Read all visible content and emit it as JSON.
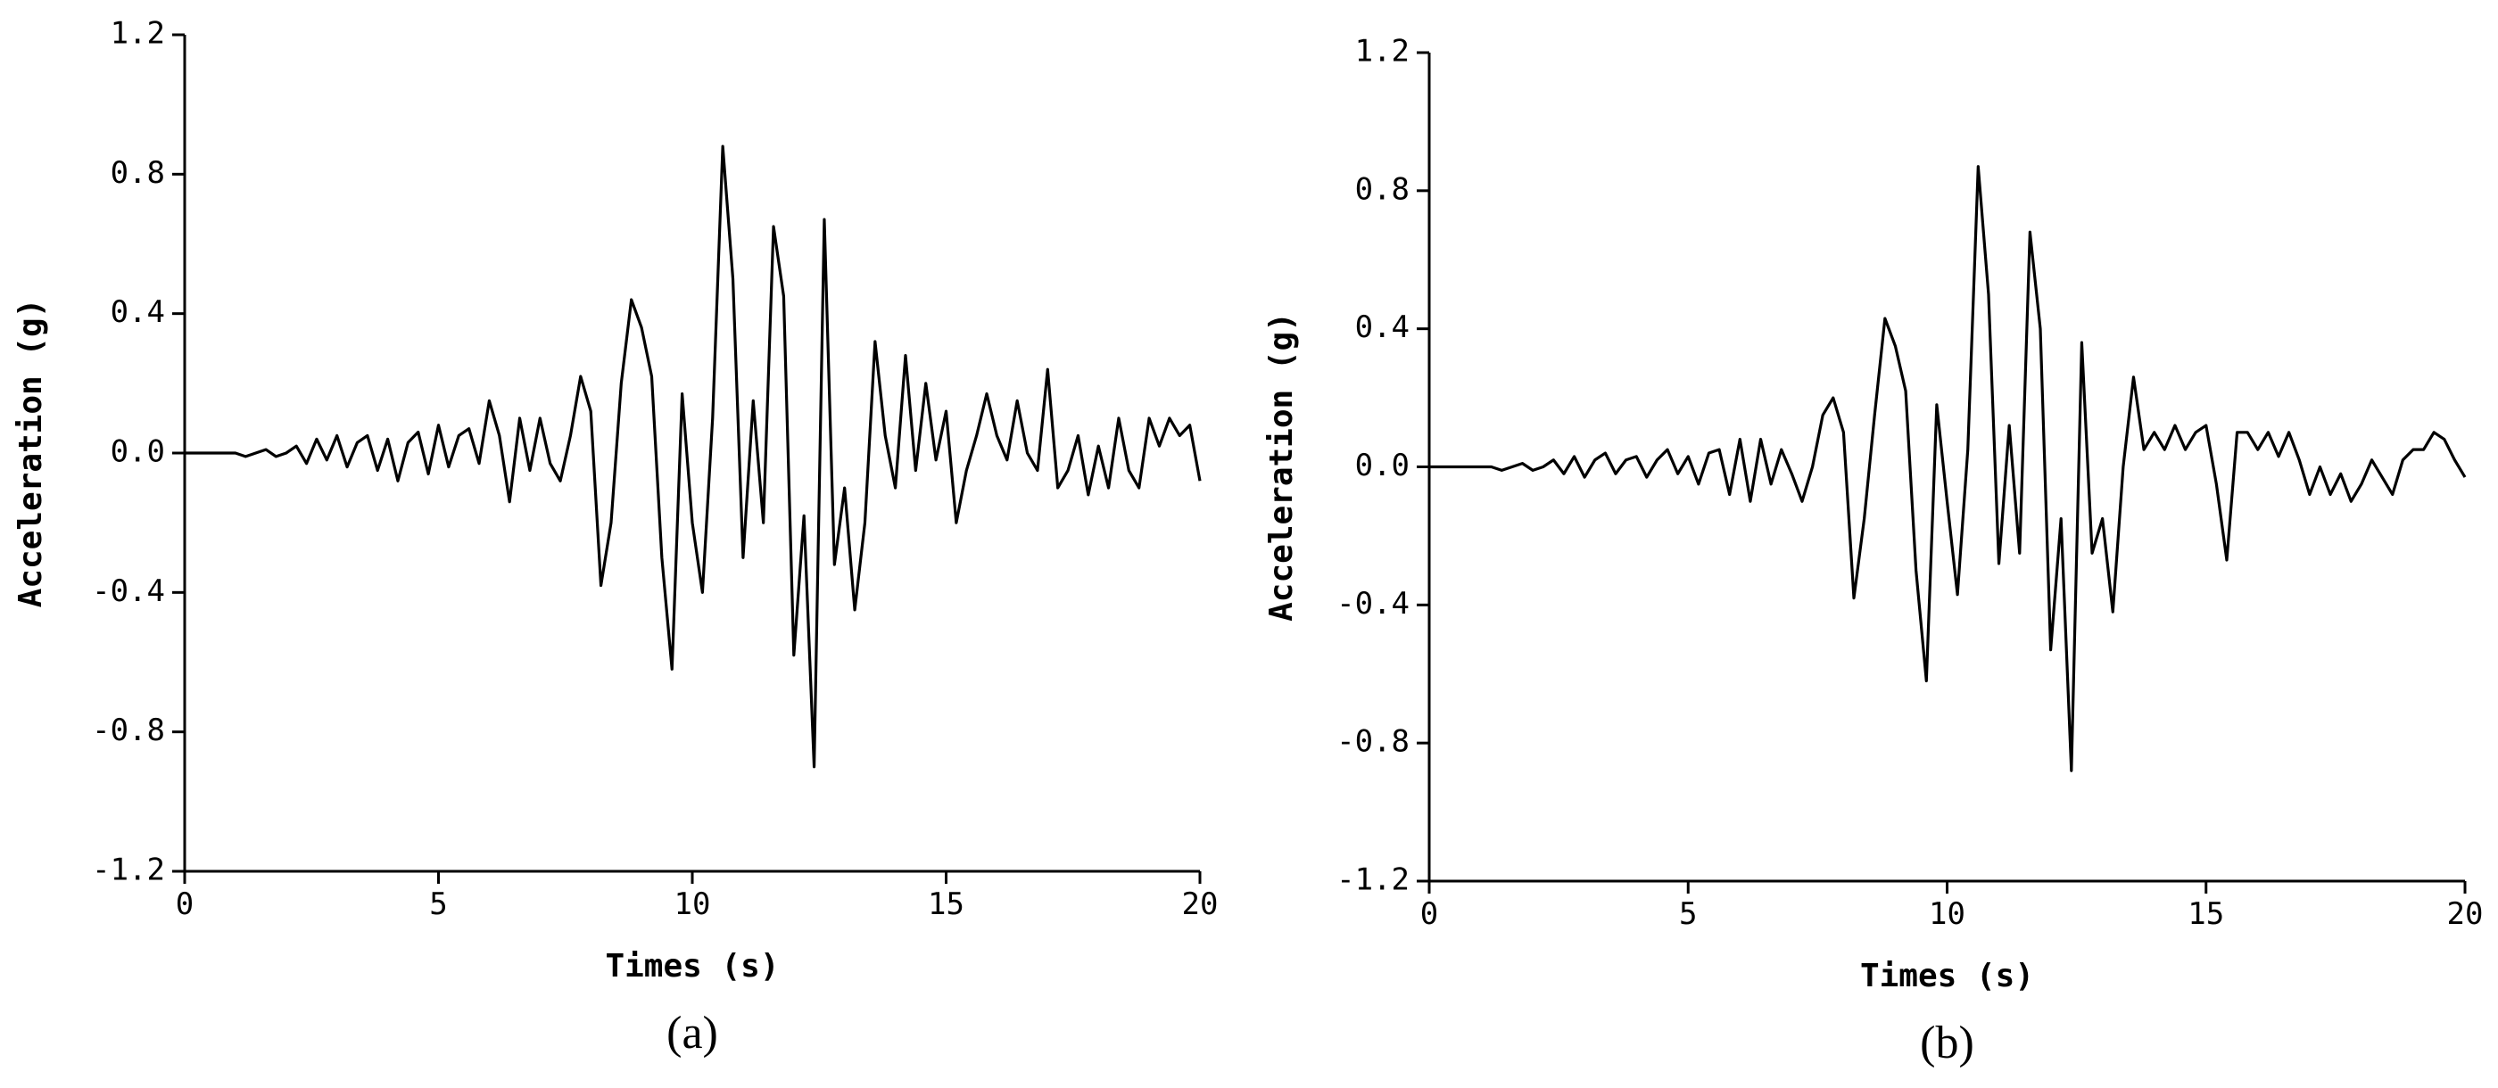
{
  "chart_data": [
    {
      "type": "line",
      "caption": "(a)",
      "xlabel": "Times (s)",
      "ylabel": "Acceleration (g)",
      "color": "#000000",
      "xlim": [
        0,
        20
      ],
      "xticks": [
        0,
        5,
        10,
        15,
        20
      ],
      "ylim": [
        -1.2,
        1.2
      ],
      "yticks": [
        -1.2,
        -0.8,
        -0.4,
        {
          "value": 0,
          "label": "0.0"
        },
        0.4,
        0.8,
        1.2
      ],
      "x": [
        0,
        0.2,
        0.4,
        0.6,
        0.8,
        1,
        1.2,
        1.4,
        1.6,
        1.8,
        2,
        2.2,
        2.4,
        2.6,
        2.8,
        3,
        3.2,
        3.4,
        3.6,
        3.8,
        4,
        4.2,
        4.4,
        4.6,
        4.8,
        5,
        5.2,
        5.4,
        5.6,
        5.8,
        6,
        6.2,
        6.4,
        6.6,
        6.8,
        7,
        7.2,
        7.4,
        7.6,
        7.8,
        8,
        8.2,
        8.4,
        8.6,
        8.8,
        9,
        9.2,
        9.4,
        9.6,
        9.8,
        10,
        10.2,
        10.4,
        10.6,
        10.8,
        11,
        11.2,
        11.4,
        11.6,
        11.8,
        12,
        12.2,
        12.4,
        12.6,
        12.8,
        13,
        13.2,
        13.4,
        13.6,
        13.8,
        14,
        14.2,
        14.4,
        14.6,
        14.8,
        15,
        15.2,
        15.4,
        15.6,
        15.8,
        16,
        16.2,
        16.4,
        16.6,
        16.8,
        17,
        17.2,
        17.4,
        17.6,
        17.8,
        18,
        18.2,
        18.4,
        18.6,
        18.8,
        19,
        19.2,
        19.4,
        19.6,
        19.8,
        20
      ],
      "values": [
        0,
        0,
        0,
        0,
        0,
        0,
        -0.01,
        0,
        0.01,
        -0.01,
        0,
        0.02,
        -0.03,
        0.04,
        -0.02,
        0.05,
        -0.04,
        0.03,
        0.05,
        -0.05,
        0.04,
        -0.08,
        0.03,
        0.06,
        -0.06,
        0.08,
        -0.04,
        0.05,
        0.07,
        -0.03,
        0.15,
        0.05,
        -0.14,
        0.1,
        -0.05,
        0.1,
        -0.03,
        -0.08,
        0.05,
        0.22,
        0.12,
        -0.38,
        -0.2,
        0.2,
        0.44,
        0.36,
        0.22,
        -0.3,
        -0.62,
        0.17,
        -0.2,
        -0.4,
        0.1,
        0.88,
        0.5,
        -0.3,
        0.15,
        -0.2,
        0.65,
        0.45,
        -0.58,
        -0.18,
        -0.9,
        0.67,
        -0.32,
        -0.1,
        -0.45,
        -0.2,
        0.32,
        0.05,
        -0.1,
        0.28,
        -0.05,
        0.2,
        -0.02,
        0.12,
        -0.2,
        -0.05,
        0.05,
        0.17,
        0.05,
        -0.02,
        0.15,
        0,
        -0.05,
        0.24,
        -0.1,
        -0.05,
        0.05,
        -0.12,
        0.02,
        -0.1,
        0.1,
        -0.05,
        -0.1,
        0.1,
        0.02,
        0.1,
        0.05,
        0.08,
        -0.08
      ]
    },
    {
      "type": "line",
      "caption": "(b)",
      "xlabel": "Times (s)",
      "ylabel": "Acceleration (g)",
      "color": "#000000",
      "xlim": [
        0,
        20
      ],
      "xticks": [
        0,
        5,
        10,
        15,
        20
      ],
      "ylim": [
        -1.2,
        1.2
      ],
      "yticks": [
        -1.2,
        -0.8,
        -0.4,
        {
          "value": 0,
          "label": "0.0"
        },
        0.4,
        0.8,
        1.2
      ],
      "x": [
        0,
        0.2,
        0.4,
        0.6,
        0.8,
        1,
        1.2,
        1.4,
        1.6,
        1.8,
        2,
        2.2,
        2.4,
        2.6,
        2.8,
        3,
        3.2,
        3.4,
        3.6,
        3.8,
        4,
        4.2,
        4.4,
        4.6,
        4.8,
        5,
        5.2,
        5.4,
        5.6,
        5.8,
        6,
        6.2,
        6.4,
        6.6,
        6.8,
        7,
        7.2,
        7.4,
        7.6,
        7.8,
        8,
        8.2,
        8.4,
        8.6,
        8.8,
        9,
        9.2,
        9.4,
        9.6,
        9.8,
        10,
        10.2,
        10.4,
        10.6,
        10.8,
        11,
        11.2,
        11.4,
        11.6,
        11.8,
        12,
        12.2,
        12.4,
        12.6,
        12.8,
        13,
        13.2,
        13.4,
        13.6,
        13.8,
        14,
        14.2,
        14.4,
        14.6,
        14.8,
        15,
        15.2,
        15.4,
        15.6,
        15.8,
        16,
        16.2,
        16.4,
        16.6,
        16.8,
        17,
        17.2,
        17.4,
        17.6,
        17.8,
        18,
        18.2,
        18.4,
        18.6,
        18.8,
        19,
        19.2,
        19.4,
        19.6,
        19.8,
        20
      ],
      "values": [
        0,
        0,
        0,
        0,
        0,
        0,
        0,
        -0.01,
        0,
        0.01,
        -0.01,
        0,
        0.02,
        -0.02,
        0.03,
        -0.03,
        0.02,
        0.04,
        -0.02,
        0.02,
        0.03,
        -0.03,
        0.02,
        0.05,
        -0.02,
        0.03,
        -0.05,
        0.04,
        0.05,
        -0.08,
        0.08,
        -0.1,
        0.08,
        -0.05,
        0.05,
        -0.02,
        -0.1,
        0,
        0.15,
        0.2,
        0.1,
        -0.38,
        -0.15,
        0.15,
        0.43,
        0.35,
        0.22,
        -0.3,
        -0.62,
        0.18,
        -0.1,
        -0.37,
        0.05,
        0.87,
        0.5,
        -0.28,
        0.12,
        -0.25,
        0.68,
        0.4,
        -0.53,
        -0.15,
        -0.88,
        0.36,
        -0.25,
        -0.15,
        -0.42,
        0,
        0.26,
        0.05,
        0.1,
        0.05,
        0.12,
        0.05,
        0.1,
        0.12,
        -0.05,
        -0.27,
        0.1,
        0.1,
        0.05,
        0.1,
        0.03,
        0.1,
        0.02,
        -0.08,
        0,
        -0.08,
        -0.02,
        -0.1,
        -0.05,
        0.02,
        -0.03,
        -0.08,
        0.02,
        0.05,
        0.05,
        0.1,
        0.08,
        0.02,
        -0.03
      ]
    }
  ]
}
